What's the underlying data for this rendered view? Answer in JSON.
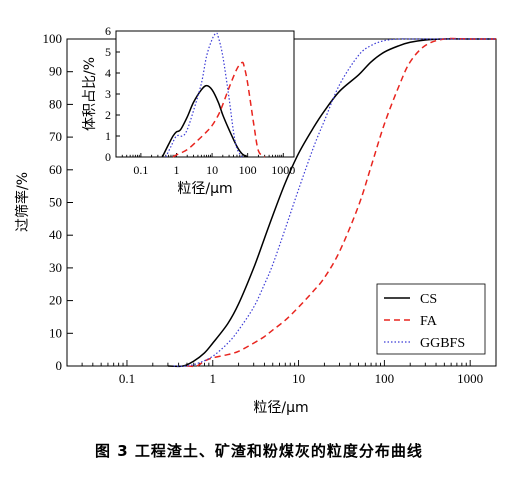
{
  "caption": "图 3   工程渣土、矿渣和粉煤灰的粒度分布曲线",
  "chart_data": [
    {
      "type": "line",
      "xlabel": "粒径/μm",
      "ylabel": "过筛率/%",
      "xscale": "log",
      "xlim": [
        0.02,
        2000
      ],
      "ylim": [
        0,
        100
      ],
      "xticks": [
        0.1,
        1,
        10,
        100,
        1000
      ],
      "xtick_labels": [
        "0.1",
        "1",
        "10",
        "100",
        "1000"
      ],
      "yticks": [
        0,
        10,
        20,
        30,
        40,
        50,
        60,
        70,
        80,
        90,
        100
      ],
      "legend_position": "bottom-right",
      "series": [
        {
          "name": "CS",
          "color": "#000000",
          "style": "solid",
          "x": [
            0.3,
            0.45,
            0.6,
            0.8,
            1,
            1.5,
            2,
            3,
            4,
            5,
            7,
            10,
            15,
            20,
            30,
            50,
            70,
            100,
            150,
            200,
            300,
            500,
            1000,
            2000
          ],
          "y": [
            0,
            0,
            1.5,
            4,
            7,
            13,
            19,
            30,
            39,
            46,
            56,
            65,
            73,
            78,
            84,
            89,
            93,
            96,
            98,
            99,
            99.7,
            100,
            100,
            100
          ]
        },
        {
          "name": "FA",
          "color": "#e8251f",
          "style": "dashed",
          "x": [
            0.5,
            0.65,
            0.8,
            1,
            1.5,
            2,
            3,
            4,
            5,
            7,
            10,
            15,
            20,
            30,
            50,
            70,
            100,
            150,
            200,
            300,
            500,
            1000,
            2000
          ],
          "y": [
            0,
            0,
            1.5,
            2.5,
            3.5,
            4.5,
            7,
            9,
            11,
            14,
            18,
            23,
            27,
            35,
            49,
            61,
            74,
            86,
            93,
            98,
            100,
            100,
            100
          ]
        },
        {
          "name": "GGBFS",
          "color": "#3b3bd6",
          "style": "dotted",
          "x": [
            0.35,
            0.5,
            0.7,
            1,
            1.5,
            2,
            3,
            4,
            5,
            7,
            10,
            15,
            20,
            30,
            50,
            70,
            100,
            150,
            200,
            300,
            500,
            1000,
            2000
          ],
          "y": [
            0,
            0,
            1,
            3,
            7,
            11,
            18,
            25,
            31,
            42,
            54,
            67,
            75,
            86,
            95,
            98,
            99.5,
            100,
            100,
            100,
            100,
            100,
            100
          ]
        }
      ]
    },
    {
      "type": "line",
      "inset": true,
      "xlabel": "粒径/μm",
      "ylabel": "体积占比/%",
      "xscale": "log",
      "xlim": [
        0.02,
        2000
      ],
      "ylim": [
        0,
        6
      ],
      "xticks": [
        0.1,
        1,
        10,
        100,
        1000
      ],
      "xtick_labels": [
        "0.1",
        "1",
        "10",
        "100",
        "1000"
      ],
      "yticks": [
        0,
        1,
        2,
        3,
        4,
        5,
        6
      ],
      "series": [
        {
          "name": "CS",
          "color": "#000000",
          "style": "solid",
          "x": [
            0.4,
            0.6,
            0.8,
            1,
            1.3,
            2,
            3,
            5,
            7,
            10,
            15,
            20,
            30,
            50,
            70,
            100
          ],
          "y": [
            0,
            0.6,
            1.0,
            1.2,
            1.3,
            1.9,
            2.6,
            3.2,
            3.4,
            3.2,
            2.6,
            2.0,
            1.3,
            0.5,
            0.15,
            0
          ]
        },
        {
          "name": "FA",
          "color": "#e8251f",
          "style": "dashed",
          "x": [
            0.8,
            1,
            2,
            4,
            7,
            10,
            15,
            20,
            30,
            50,
            70,
            80,
            100,
            150,
            200,
            300
          ],
          "y": [
            0,
            0.1,
            0.35,
            0.8,
            1.2,
            1.5,
            2.0,
            2.5,
            3.3,
            4.2,
            4.5,
            4.3,
            3.5,
            1.5,
            0.3,
            0
          ]
        },
        {
          "name": "GGBFS",
          "color": "#3b3bd6",
          "style": "dotted",
          "x": [
            0.5,
            0.7,
            1,
            1.5,
            2,
            3,
            5,
            7,
            10,
            13,
            15,
            20,
            30,
            40,
            50,
            70
          ],
          "y": [
            0,
            0.5,
            1.0,
            1.0,
            1.3,
            2.2,
            3.5,
            4.8,
            5.6,
            5.9,
            5.7,
            4.8,
            2.8,
            1.2,
            0.4,
            0
          ]
        }
      ]
    }
  ]
}
